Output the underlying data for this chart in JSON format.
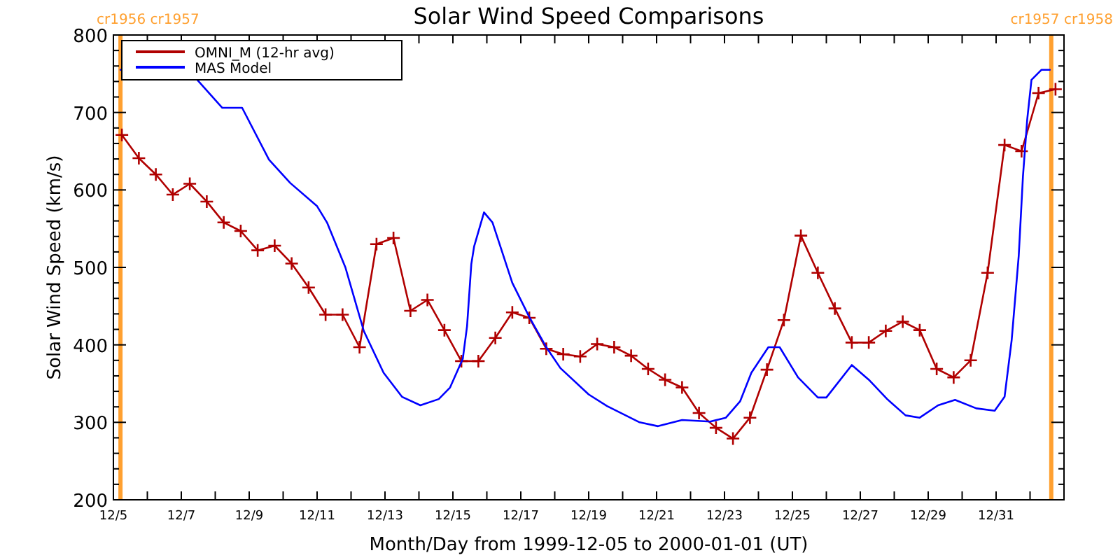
{
  "chart_data": {
    "type": "line",
    "title": "Solar Wind Speed Comparisons",
    "xlabel": "Month/Day from 1999-12-05 to 2000-01-01 (UT)",
    "ylabel": "Solar Wind Speed (km/s)",
    "xlim": [
      "1999-12-05",
      "2000-01-02"
    ],
    "xticks": [
      {
        "value": "1999-12-05",
        "label": "12/5"
      },
      {
        "value": "1999-12-06",
        "label": null
      },
      {
        "value": "1999-12-07",
        "label": "12/7"
      },
      {
        "value": "1999-12-08",
        "label": null
      },
      {
        "value": "1999-12-09",
        "label": "12/9"
      },
      {
        "value": "1999-12-10",
        "label": null
      },
      {
        "value": "1999-12-11",
        "label": "12/11"
      },
      {
        "value": "1999-12-12",
        "label": null
      },
      {
        "value": "1999-12-13",
        "label": "12/13"
      },
      {
        "value": "1999-12-14",
        "label": null
      },
      {
        "value": "1999-12-15",
        "label": "12/15"
      },
      {
        "value": "1999-12-16",
        "label": null
      },
      {
        "value": "1999-12-17",
        "label": "12/17"
      },
      {
        "value": "1999-12-18",
        "label": null
      },
      {
        "value": "1999-12-19",
        "label": "12/19"
      },
      {
        "value": "1999-12-20",
        "label": null
      },
      {
        "value": "1999-12-21",
        "label": "12/21"
      },
      {
        "value": "1999-12-22",
        "label": null
      },
      {
        "value": "1999-12-23",
        "label": "12/23"
      },
      {
        "value": "1999-12-24",
        "label": null
      },
      {
        "value": "1999-12-25",
        "label": "12/25"
      },
      {
        "value": "1999-12-26",
        "label": null
      },
      {
        "value": "1999-12-27",
        "label": "12/27"
      },
      {
        "value": "1999-12-28",
        "label": null
      },
      {
        "value": "1999-12-29",
        "label": "12/29"
      },
      {
        "value": "1999-12-30",
        "label": null
      },
      {
        "value": "1999-12-31",
        "label": "12/31"
      },
      {
        "value": "2000-01-01",
        "label": null
      }
    ],
    "ylim": [
      200,
      800
    ],
    "yticks": [
      200,
      {
        "value": 220,
        "label": null
      },
      {
        "value": 240,
        "label": null
      },
      {
        "value": 260,
        "label": null
      },
      {
        "value": 280,
        "label": null
      },
      300,
      {
        "value": 320,
        "label": null
      },
      {
        "value": 340,
        "label": null
      },
      {
        "value": 360,
        "label": null
      },
      {
        "value": 380,
        "label": null
      },
      400,
      {
        "value": 420,
        "label": null
      },
      {
        "value": 440,
        "label": null
      },
      {
        "value": 460,
        "label": null
      },
      {
        "value": 480,
        "label": null
      },
      500,
      {
        "value": 520,
        "label": null
      },
      {
        "value": 540,
        "label": null
      },
      {
        "value": 560,
        "label": null
      },
      {
        "value": 580,
        "label": null
      },
      600,
      {
        "value": 620,
        "label": null
      },
      {
        "value": 640,
        "label": null
      },
      {
        "value": 660,
        "label": null
      },
      {
        "value": 680,
        "label": null
      },
      700,
      {
        "value": 720,
        "label": null
      },
      {
        "value": 740,
        "label": null
      },
      {
        "value": 760,
        "label": null
      },
      {
        "value": 780,
        "label": null
      },
      800
    ],
    "grid": false,
    "legend": "top left",
    "line_style": "solid",
    "ref_lines": [
      {
        "axis": "x",
        "value": "1999-12-05T05:00",
        "label": "cr1956 cr1957",
        "color": "#ffa030"
      },
      {
        "axis": "x",
        "value": "2000-01-01T15:00",
        "label": "cr1957 cr1958",
        "color": "#ffa030"
      }
    ],
    "series": [
      {
        "name": "OMNI_M (12-hr avg)",
        "color": "#b00000",
        "marker": "cross",
        "x": [
          "1999-12-05T06:00",
          "1999-12-05T18:00",
          "1999-12-06T06:00",
          "1999-12-06T18:00",
          "1999-12-07T06:00",
          "1999-12-07T18:00",
          "1999-12-08T06:00",
          "1999-12-08T18:00",
          "1999-12-09T06:00",
          "1999-12-09T18:00",
          "1999-12-10T06:00",
          "1999-12-10T18:00",
          "1999-12-11T06:00",
          "1999-12-11T18:00",
          "1999-12-12T06:00",
          "1999-12-12T18:00",
          "1999-12-13T06:00",
          "1999-12-13T18:00",
          "1999-12-14T06:00",
          "1999-12-14T18:00",
          "1999-12-15T06:00",
          "1999-12-15T18:00",
          "1999-12-16T06:00",
          "1999-12-16T18:00",
          "1999-12-17T06:00",
          "1999-12-17T18:00",
          "1999-12-18T06:00",
          "1999-12-18T18:00",
          "1999-12-19T06:00",
          "1999-12-19T18:00",
          "1999-12-20T06:00",
          "1999-12-20T18:00",
          "1999-12-21T06:00",
          "1999-12-21T18:00",
          "1999-12-22T06:00",
          "1999-12-22T18:00",
          "1999-12-23T06:00",
          "1999-12-23T18:00",
          "1999-12-24T06:00",
          "1999-12-24T18:00",
          "1999-12-25T06:00",
          "1999-12-25T18:00",
          "1999-12-26T06:00",
          "1999-12-26T18:00",
          "1999-12-27T06:00",
          "1999-12-27T18:00",
          "1999-12-28T06:00",
          "1999-12-28T18:00",
          "1999-12-29T06:00",
          "1999-12-29T18:00",
          "1999-12-30T06:00",
          "1999-12-30T18:00",
          "1999-12-31T06:00",
          "1999-12-31T18:00",
          "2000-01-01T06:00",
          "2000-01-01T18:00"
        ],
        "values": [
          671,
          641,
          620,
          594,
          608,
          585,
          558,
          547,
          522,
          528,
          505,
          474,
          439,
          439,
          397,
          530,
          538,
          444,
          458,
          419,
          379,
          379,
          409,
          442,
          435,
          395,
          388,
          385,
          401,
          397,
          386,
          369,
          355,
          345,
          312,
          293,
          279,
          306,
          368,
          432,
          541,
          493,
          447,
          403,
          403,
          418,
          430,
          419,
          369,
          358,
          380,
          493,
          658,
          650,
          725,
          730
        ]
      },
      {
        "name": "MAS Model",
        "color": "#0000ff",
        "marker": "none",
        "x": [
          "1999-12-05T05:00",
          "1999-12-07T04:00",
          "1999-12-08T05:00",
          "1999-12-08T19:00",
          "1999-12-09T14:00",
          "1999-12-10T05:00",
          "1999-12-11T00:00",
          "1999-12-11T07:00",
          "1999-12-11T20:00",
          "1999-12-12T09:00",
          "1999-12-12T23:00",
          "1999-12-13T12:00",
          "1999-12-14T01:00",
          "1999-12-14T14:00",
          "1999-12-14T22:00",
          "1999-12-15T07:00",
          "1999-12-15T10:00",
          "1999-12-15T13:00",
          "1999-12-15T15:00",
          "1999-12-15T22:00",
          "1999-12-16T04:00",
          "1999-12-16T18:00",
          "1999-12-17T06:00",
          "1999-12-17T18:00",
          "1999-12-18T04:00",
          "1999-12-19T00:00",
          "1999-12-19T13:00",
          "1999-12-20T12:00",
          "1999-12-21T01:00",
          "1999-12-21T18:00",
          "1999-12-22T14:00",
          "1999-12-23T01:00",
          "1999-12-23T11:00",
          "1999-12-23T19:00",
          "1999-12-24T07:00",
          "1999-12-24T15:00",
          "1999-12-25T04:00",
          "1999-12-25T18:00",
          "1999-12-26T00:00",
          "1999-12-26T18:00",
          "1999-12-27T06:00",
          "1999-12-27T19:00",
          "1999-12-28T08:00",
          "1999-12-28T18:00",
          "1999-12-29T07:00",
          "1999-12-29T19:00",
          "1999-12-30T10:00",
          "1999-12-30T23:00",
          "1999-12-31T06:00",
          "1999-12-31T11:00",
          "1999-12-31T16:00",
          "1999-12-31T19:00",
          "1999-12-31T22:00",
          "2000-01-01T01:00",
          "2000-01-01T08:00",
          "2000-01-01T14:00"
        ],
        "values": [
          755,
          757,
          706,
          706,
          639,
          609,
          579,
          558,
          500,
          418,
          364,
          333,
          322,
          330,
          345,
          382,
          424,
          504,
          527,
          571,
          558,
          480,
          436,
          397,
          370,
          336,
          321,
          300,
          295,
          303,
          301,
          306,
          327,
          364,
          397,
          397,
          358,
          332,
          332,
          374,
          355,
          330,
          309,
          306,
          322,
          329,
          318,
          315,
          333,
          406,
          515,
          618,
          691,
          742,
          755,
          755
        ]
      }
    ]
  }
}
